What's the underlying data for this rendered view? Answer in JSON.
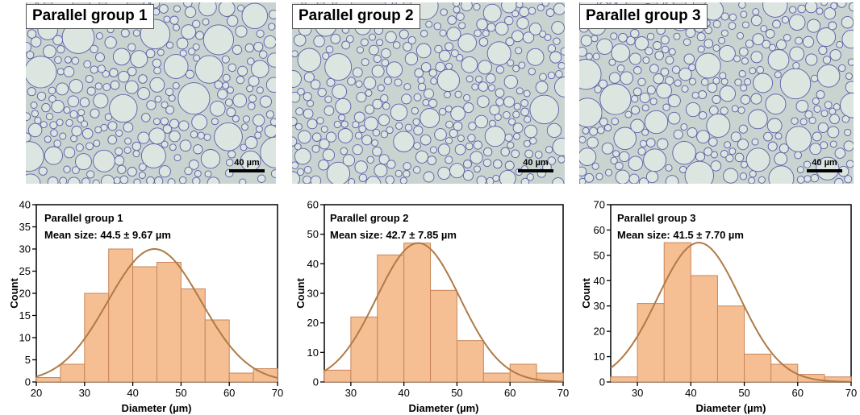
{
  "panels": [
    {
      "micro_label": "Parallel group 1",
      "scale_label": "40 µm",
      "chart": {
        "type": "bar",
        "title": "Parallel group 1",
        "subtitle": "Mean size: 44.5 ± 9.67 µm",
        "xlabel": "Diameter (µm)",
        "ylabel": "Count",
        "xlim": [
          20,
          70
        ],
        "ylim": [
          0,
          40
        ],
        "xticks": [
          20,
          30,
          40,
          50,
          60,
          70
        ],
        "yticks": [
          0,
          5,
          10,
          15,
          20,
          25,
          30,
          35,
          40
        ],
        "bins": [
          20,
          25,
          30,
          35,
          40,
          45,
          50,
          55,
          60,
          65,
          70
        ],
        "values": [
          1,
          4,
          20,
          30,
          26,
          27,
          21,
          14,
          2,
          3
        ],
        "fit": {
          "type": "normal",
          "mean": 44.5,
          "sd": 9.67,
          "peak": 30
        }
      }
    },
    {
      "micro_label": "Parallel group 2",
      "scale_label": "40 µm",
      "chart": {
        "type": "bar",
        "title": "Parallel group 2",
        "subtitle": "Mean size: 42.7 ± 7.85 µm",
        "xlabel": "Diameter (µm)",
        "ylabel": "Count",
        "xlim": [
          25,
          70
        ],
        "ylim": [
          0,
          60
        ],
        "xticks": [
          30,
          40,
          50,
          60,
          70
        ],
        "yticks": [
          0,
          10,
          20,
          30,
          40,
          50,
          60
        ],
        "bins": [
          25,
          30,
          35,
          40,
          45,
          50,
          55,
          60,
          65,
          70
        ],
        "values": [
          4,
          22,
          43,
          47,
          31,
          14,
          3,
          6,
          3
        ],
        "fit": {
          "type": "normal",
          "mean": 42.7,
          "sd": 7.85,
          "peak": 47
        }
      }
    },
    {
      "micro_label": "Parallel group 3",
      "scale_label": "40 µm",
      "chart": {
        "type": "bar",
        "title": "Parallel group 3",
        "subtitle": "Mean size: 41.5 ± 7.70 µm",
        "xlabel": "Diameter (µm)",
        "ylabel": "Count",
        "xlim": [
          25,
          70
        ],
        "ylim": [
          0,
          70
        ],
        "xticks": [
          30,
          40,
          50,
          60,
          70
        ],
        "yticks": [
          0,
          10,
          20,
          30,
          40,
          50,
          60,
          70
        ],
        "bins": [
          25,
          30,
          35,
          40,
          45,
          50,
          55,
          60,
          65,
          70
        ],
        "values": [
          2,
          31,
          55,
          42,
          30,
          11,
          7,
          3,
          2
        ],
        "fit": {
          "type": "normal",
          "mean": 41.5,
          "sd": 7.7,
          "peak": 55
        }
      }
    }
  ],
  "colors": {
    "bar_fill": "#f5bf93",
    "bar_stroke": "#c8865a",
    "fit_line": "#b07a45",
    "axis": "#000000",
    "micro_background": "#c9d4d1",
    "droplet_edge": "#5a5fa8"
  }
}
